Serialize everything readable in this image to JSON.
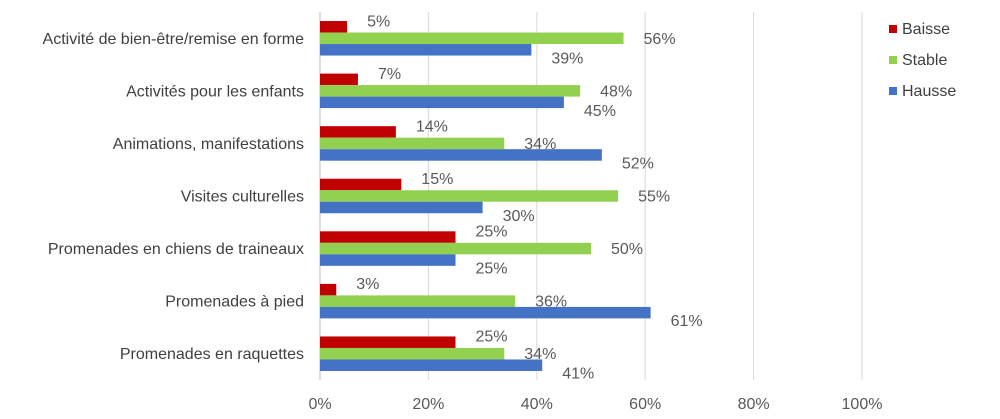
{
  "chart_data": {
    "type": "bar",
    "orientation": "horizontal",
    "categories": [
      "Activité de bien-être/remise en forme",
      "Activités pour les enfants",
      "Animations, manifestations",
      "Visites culturelles",
      "Promenades en chiens de traineaux",
      "Promenades à pied",
      "Promenades en raquettes"
    ],
    "series": [
      {
        "name": "Baisse",
        "color": "#c00000",
        "values": [
          5,
          7,
          14,
          15,
          25,
          3,
          25
        ]
      },
      {
        "name": "Stable",
        "color": "#92d050",
        "values": [
          56,
          48,
          34,
          55,
          50,
          36,
          34
        ]
      },
      {
        "name": "Hausse",
        "color": "#4472c4",
        "values": [
          39,
          45,
          52,
          30,
          25,
          61,
          41
        ]
      }
    ],
    "value_suffix": "%",
    "xlim": [
      0,
      100
    ],
    "xticks": [
      "0%",
      "20%",
      "40%",
      "60%",
      "80%",
      "100%"
    ],
    "grid": true,
    "legend_position": "right"
  }
}
